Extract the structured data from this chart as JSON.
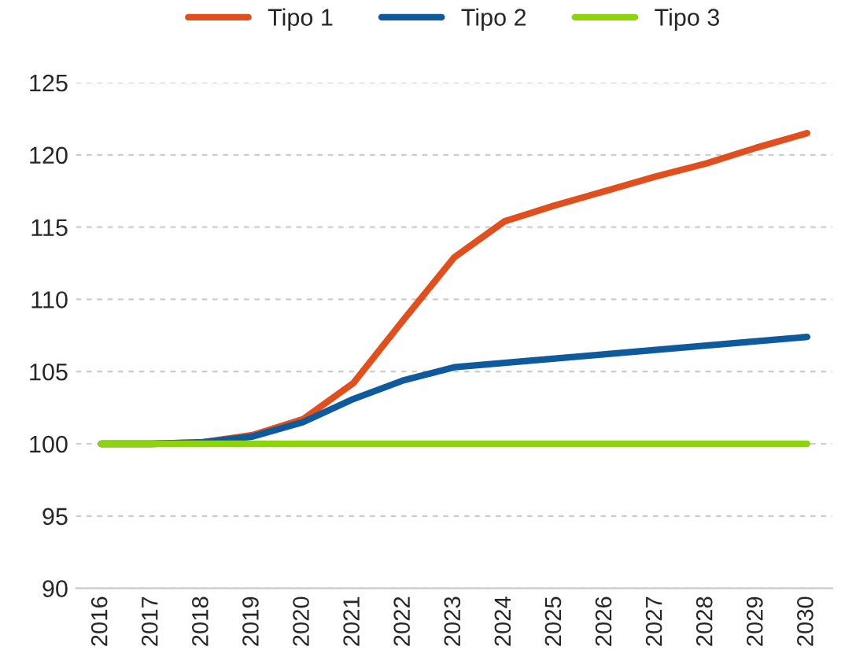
{
  "chart_data": {
    "type": "line",
    "categories": [
      "2016",
      "2017",
      "2018",
      "2019",
      "2020",
      "2021",
      "2022",
      "2023",
      "2024",
      "2025",
      "2026",
      "2027",
      "2028",
      "2029",
      "2030"
    ],
    "series": [
      {
        "name": "Tipo 1",
        "color": "#e0501e",
        "values": [
          100,
          100,
          100.1,
          100.6,
          101.7,
          104.2,
          108.6,
          112.9,
          115.4,
          116.5,
          117.5,
          118.5,
          119.4,
          120.5,
          121.5
        ]
      },
      {
        "name": "Tipo 2",
        "color": "#0e5a9c",
        "values": [
          100,
          100,
          100.1,
          100.5,
          101.5,
          103.1,
          104.4,
          105.3,
          105.6,
          105.9,
          106.2,
          106.5,
          106.8,
          107.1,
          107.4
        ]
      },
      {
        "name": "Tipo 3",
        "color": "#8ed40a",
        "values": [
          100,
          100,
          100,
          100,
          100,
          100,
          100,
          100,
          100,
          100,
          100,
          100,
          100,
          100,
          100
        ]
      }
    ],
    "ylim": [
      90,
      125
    ],
    "yticks": [
      90,
      95,
      100,
      105,
      110,
      115,
      120,
      125
    ],
    "grid": "y",
    "legend": "top",
    "marker": "none",
    "line_style": "solid"
  }
}
